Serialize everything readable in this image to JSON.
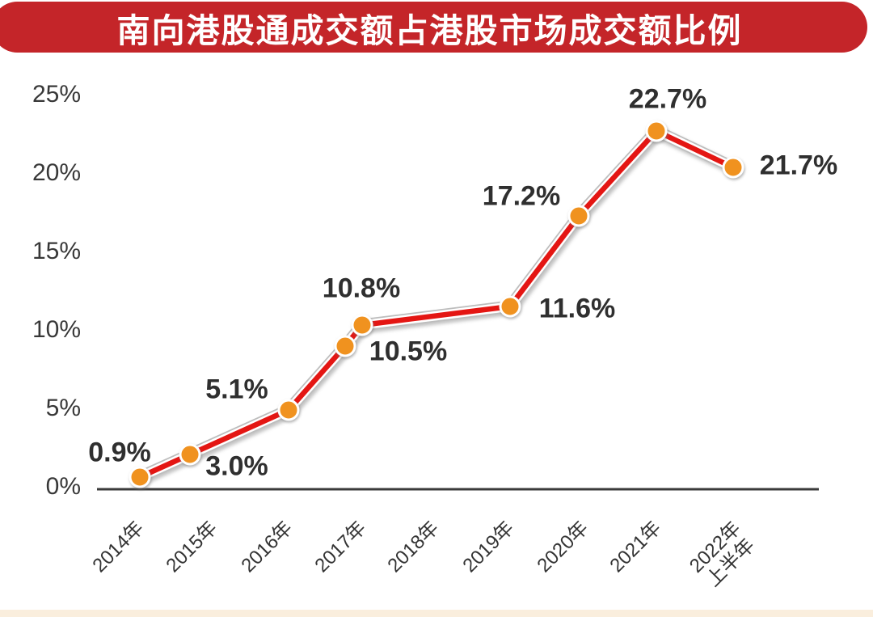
{
  "title": "南向港股通成交额占港股市场成交额比例",
  "y_axis": {
    "ticks": [
      "25%",
      "20%",
      "15%",
      "10%",
      "5%",
      "0%"
    ]
  },
  "x_axis": {
    "ticks": [
      "2014年",
      "2015年",
      "2016年",
      "2017年",
      "2018年",
      "2019年",
      "2020年",
      "2021年",
      "2022年\n上半年"
    ]
  },
  "data_labels": [
    "0.9%",
    "3.0%",
    "5.1%",
    "10.5%",
    "10.8%",
    "11.6%",
    "17.2%",
    "22.7%",
    "21.7%"
  ],
  "colors": {
    "banner_red": "#c42529",
    "title_text": "#ffffff",
    "line_red": "#e41613",
    "line_casing_white": "#ffffff",
    "line_casing_gray": "#bdbdbd",
    "point_orange": "#f0921f",
    "point_ring": "#ffffff",
    "axis": "#3a3a3a",
    "label_text": "#2f2f2f",
    "tick_text": "#383838",
    "bottom_strip": "#faeedd"
  },
  "chart_data": {
    "type": "line",
    "title": "南向港股通成交额占港股市场成交额比例",
    "categories": [
      "2014年",
      "2015年",
      "2016年",
      "2017年",
      "2018年",
      "2019年",
      "2020年",
      "2021年",
      "2022年上半年"
    ],
    "values": [
      0.9,
      3.0,
      5.1,
      10.5,
      10.8,
      11.6,
      17.2,
      22.7,
      21.7
    ],
    "unit": "%",
    "ylabel": "",
    "xlabel": "",
    "ylim": [
      0,
      25
    ],
    "y_tick_step": 5,
    "grid": false,
    "legend": false,
    "marker": "circle",
    "data_labels_shown": true
  }
}
